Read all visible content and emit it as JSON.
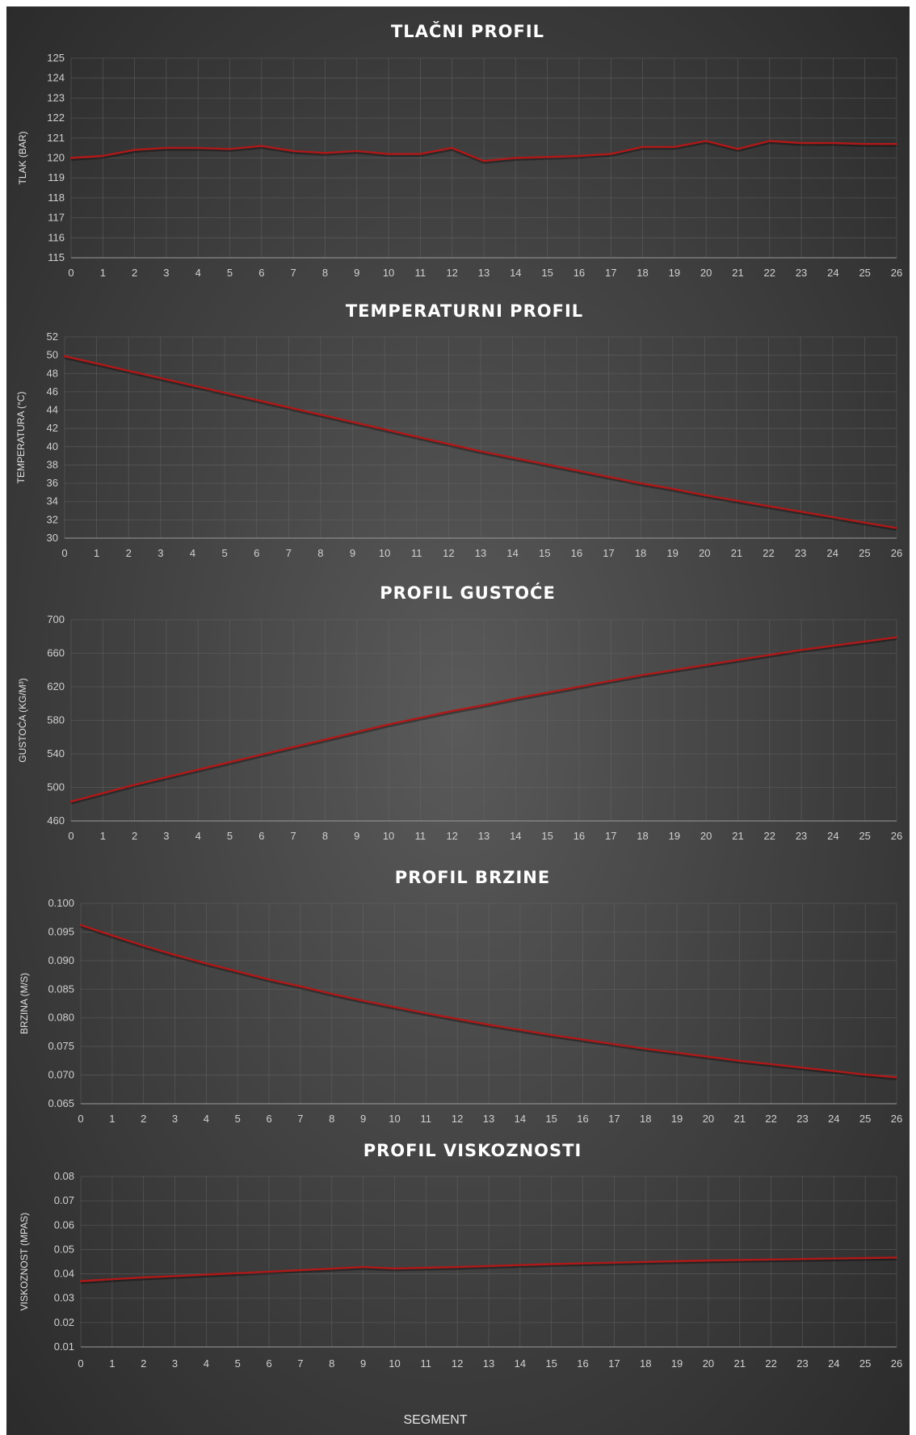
{
  "figure": {
    "xlabel": "SEGMENT"
  },
  "colors": {
    "line": "#b01818",
    "grid": "#6a6a6a",
    "background_center": "#5a5a5a",
    "background_edge": "#2b2b2b"
  },
  "chart_data": [
    {
      "type": "line",
      "title": "TLAČNI PROFIL",
      "ylabel": "TLAK (BAR)",
      "x": [
        0,
        1,
        2,
        3,
        4,
        5,
        6,
        7,
        8,
        9,
        10,
        11,
        12,
        13,
        14,
        15,
        16,
        17,
        18,
        19,
        20,
        21,
        22,
        23,
        24,
        25,
        26
      ],
      "xlim": [
        0,
        26
      ],
      "ylim": [
        115,
        125
      ],
      "yticks": [
        "115",
        "116",
        "117",
        "118",
        "119",
        "120",
        "121",
        "122",
        "123",
        "124",
        "125"
      ],
      "grid": true,
      "series": [
        {
          "values": [
            120.0,
            120.1,
            120.4,
            120.5,
            120.5,
            120.45,
            120.6,
            120.35,
            120.25,
            120.35,
            120.2,
            120.2,
            120.5,
            119.85,
            120.0,
            120.05,
            120.1,
            120.2,
            120.55,
            120.55,
            120.85,
            120.45,
            120.85,
            120.75,
            120.75,
            120.7,
            120.7
          ]
        }
      ]
    },
    {
      "type": "line",
      "title": "TEMPERATURNI PROFIL",
      "ylabel": "TEMPERATURA (°C)",
      "x": [
        0,
        1,
        2,
        3,
        4,
        5,
        6,
        7,
        8,
        9,
        10,
        11,
        12,
        13,
        14,
        15,
        16,
        17,
        18,
        19,
        20,
        21,
        22,
        23,
        24,
        25,
        26
      ],
      "xlim": [
        0,
        26
      ],
      "ylim": [
        30,
        52
      ],
      "yticks": [
        "30",
        "32",
        "34",
        "36",
        "38",
        "40",
        "42",
        "44",
        "46",
        "48",
        "50",
        "52"
      ],
      "grid": true,
      "series": [
        {
          "values": [
            49.9,
            49.1,
            48.3,
            47.5,
            46.7,
            45.9,
            45.1,
            44.3,
            43.5,
            42.7,
            41.9,
            41.1,
            40.3,
            39.5,
            38.8,
            38.1,
            37.4,
            36.7,
            36.0,
            35.4,
            34.7,
            34.1,
            33.5,
            32.9,
            32.3,
            31.7,
            31.1
          ]
        }
      ]
    },
    {
      "type": "line",
      "title": "PROFIL GUSTOĆE",
      "ylabel": "GUSTOĆA (KG/M³)",
      "x": [
        0,
        1,
        2,
        3,
        4,
        5,
        6,
        7,
        8,
        9,
        10,
        11,
        12,
        13,
        14,
        15,
        16,
        17,
        18,
        19,
        20,
        21,
        22,
        23,
        24,
        25,
        26
      ],
      "xlim": [
        0,
        26
      ],
      "ylim": [
        460,
        700
      ],
      "yticks": [
        "460",
        "500",
        "540",
        "580",
        "620",
        "660",
        "700"
      ],
      "grid": true,
      "series": [
        {
          "values": [
            483,
            493,
            503,
            512,
            521,
            530,
            539,
            548,
            557,
            566,
            575,
            583,
            591,
            598,
            606,
            613,
            620,
            627,
            634,
            640,
            646,
            652,
            658,
            664,
            669,
            674,
            679
          ]
        }
      ]
    },
    {
      "type": "line",
      "title": "PROFIL BRZINE",
      "ylabel": "BRZINA (M/S)",
      "x": [
        0,
        1,
        2,
        3,
        4,
        5,
        6,
        7,
        8,
        9,
        10,
        11,
        12,
        13,
        14,
        15,
        16,
        17,
        18,
        19,
        20,
        21,
        22,
        23,
        24,
        25,
        26
      ],
      "xlim": [
        0,
        26
      ],
      "ylim": [
        0.065,
        0.1
      ],
      "yticks": [
        "0.065",
        "0.070",
        "0.075",
        "0.080",
        "0.085",
        "0.090",
        "0.095",
        "0.100"
      ],
      "grid": true,
      "series": [
        {
          "values": [
            0.0962,
            0.0944,
            0.0926,
            0.091,
            0.0895,
            0.0881,
            0.0867,
            0.0855,
            0.0842,
            0.083,
            0.0819,
            0.0808,
            0.0798,
            0.0788,
            0.0779,
            0.077,
            0.0762,
            0.0754,
            0.0746,
            0.0739,
            0.0732,
            0.0725,
            0.0719,
            0.0713,
            0.0707,
            0.0701,
            0.0696
          ]
        }
      ]
    },
    {
      "type": "line",
      "title": "PROFIL VISKOZNOSTI",
      "ylabel": "VISKOZNOST (MPAS)",
      "x": [
        0,
        1,
        2,
        3,
        4,
        5,
        6,
        7,
        8,
        9,
        10,
        11,
        12,
        13,
        14,
        15,
        16,
        17,
        18,
        19,
        20,
        21,
        22,
        23,
        24,
        25,
        26
      ],
      "xlim": [
        0,
        26
      ],
      "ylim": [
        0.01,
        0.08
      ],
      "yticks": [
        "0.01",
        "0.02",
        "0.03",
        "0.04",
        "0.05",
        "0.06",
        "0.07",
        "0.08"
      ],
      "grid": true,
      "series": [
        {
          "values": [
            0.037,
            0.0378,
            0.0385,
            0.0391,
            0.0397,
            0.0403,
            0.0409,
            0.0415,
            0.0421,
            0.0428,
            0.0422,
            0.0425,
            0.0428,
            0.0432,
            0.0436,
            0.044,
            0.0443,
            0.0446,
            0.0449,
            0.0452,
            0.0455,
            0.0457,
            0.0459,
            0.0461,
            0.0463,
            0.0465,
            0.0467
          ]
        }
      ]
    }
  ]
}
